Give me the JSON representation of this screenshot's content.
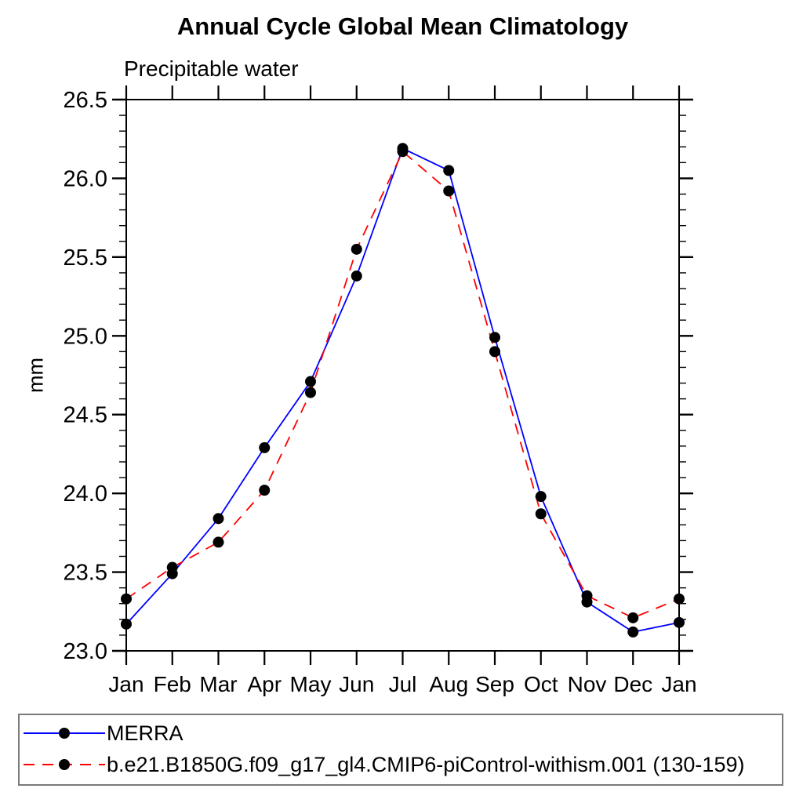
{
  "page_title": "Annual Cycle Global Mean Climatology",
  "chart_data": {
    "type": "line",
    "title": "Annual Cycle Global Mean Climatology",
    "subtitle": "Precipitable water",
    "xlabel": "",
    "ylabel": "mm",
    "x_categories": [
      "Jan",
      "Feb",
      "Mar",
      "Apr",
      "May",
      "Jun",
      "Jul",
      "Aug",
      "Sep",
      "Oct",
      "Nov",
      "Dec",
      "Jan"
    ],
    "ylim": [
      23.0,
      26.5
    ],
    "ytick_major_step": 0.5,
    "ytick_minor_step": 0.1,
    "ytick_labels": [
      "23.0",
      "23.5",
      "24.0",
      "24.5",
      "25.0",
      "25.5",
      "26.0",
      "26.5"
    ],
    "grid": false,
    "legend_position": "bottom boxed",
    "axis_color": "#000000",
    "marker_color": "#000000",
    "marker_radius": 7,
    "series": [
      {
        "name": "MERRA",
        "color": "#0000ff",
        "line_style": "solid",
        "dasharray": "none",
        "marker": "circle",
        "values": [
          23.17,
          23.49,
          23.84,
          24.29,
          24.71,
          25.38,
          26.19,
          26.05,
          24.99,
          23.98,
          23.31,
          23.12,
          23.18
        ]
      },
      {
        "name": "b.e21.B1850G.f09_g17_gl4.CMIP6-piControl-withism.001 (130-159)",
        "color": "#ff0000",
        "line_style": "dashed",
        "dasharray": "14 10",
        "marker": "circle",
        "values": [
          23.33,
          23.53,
          23.69,
          24.02,
          24.64,
          25.55,
          26.17,
          25.92,
          24.9,
          23.87,
          23.35,
          23.21,
          23.33
        ]
      }
    ]
  }
}
